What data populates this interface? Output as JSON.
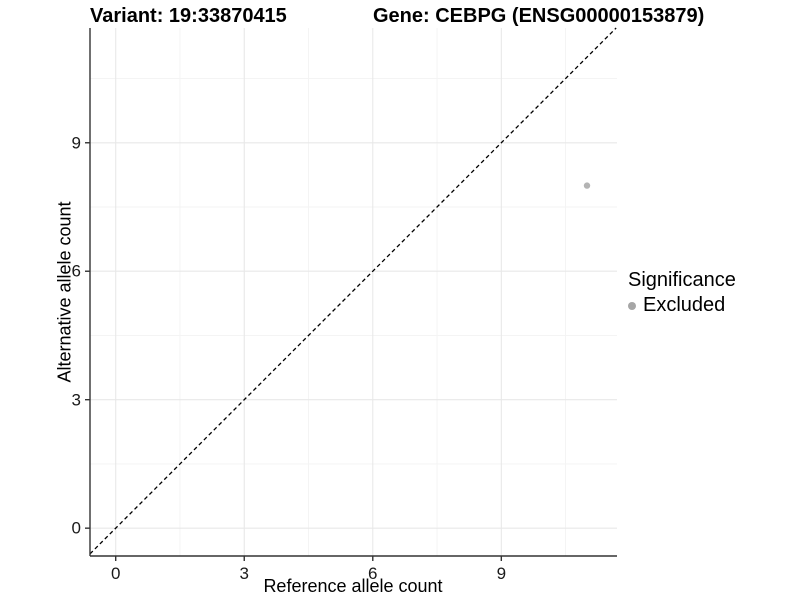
{
  "chart_data": {
    "type": "scatter",
    "title_left": "Variant: 19:33870415",
    "title_right": "Gene: CEBPG (ENSG00000153879)",
    "xlabel": "Reference allele count",
    "ylabel": "Alternative allele count",
    "xlim": [
      -0.6,
      11.7
    ],
    "ylim": [
      -0.65,
      11.68
    ],
    "xticks": [
      0,
      3,
      6,
      9
    ],
    "yticks": [
      0,
      3,
      6,
      9
    ],
    "minor_ticks": [
      1.5,
      4.5,
      7.5,
      10.5
    ],
    "grid": true,
    "colors": {
      "major_grid": "#e8e8e8",
      "minor_grid": "#f3f3f3",
      "axis_line": "#333333",
      "identity_line": "#000000",
      "point": "#b4b4b4",
      "legend_dot": "#a6a6a6"
    },
    "reference_line": {
      "type": "identity",
      "style": "dashed"
    },
    "series": [
      {
        "name": "Excluded",
        "color": "#b4b4b4",
        "points": [
          {
            "x": 11,
            "y": 8
          }
        ]
      }
    ],
    "legend": {
      "title": "Significance",
      "position": "right",
      "items": [
        {
          "label": "Excluded",
          "color": "#a6a6a6"
        }
      ]
    }
  }
}
